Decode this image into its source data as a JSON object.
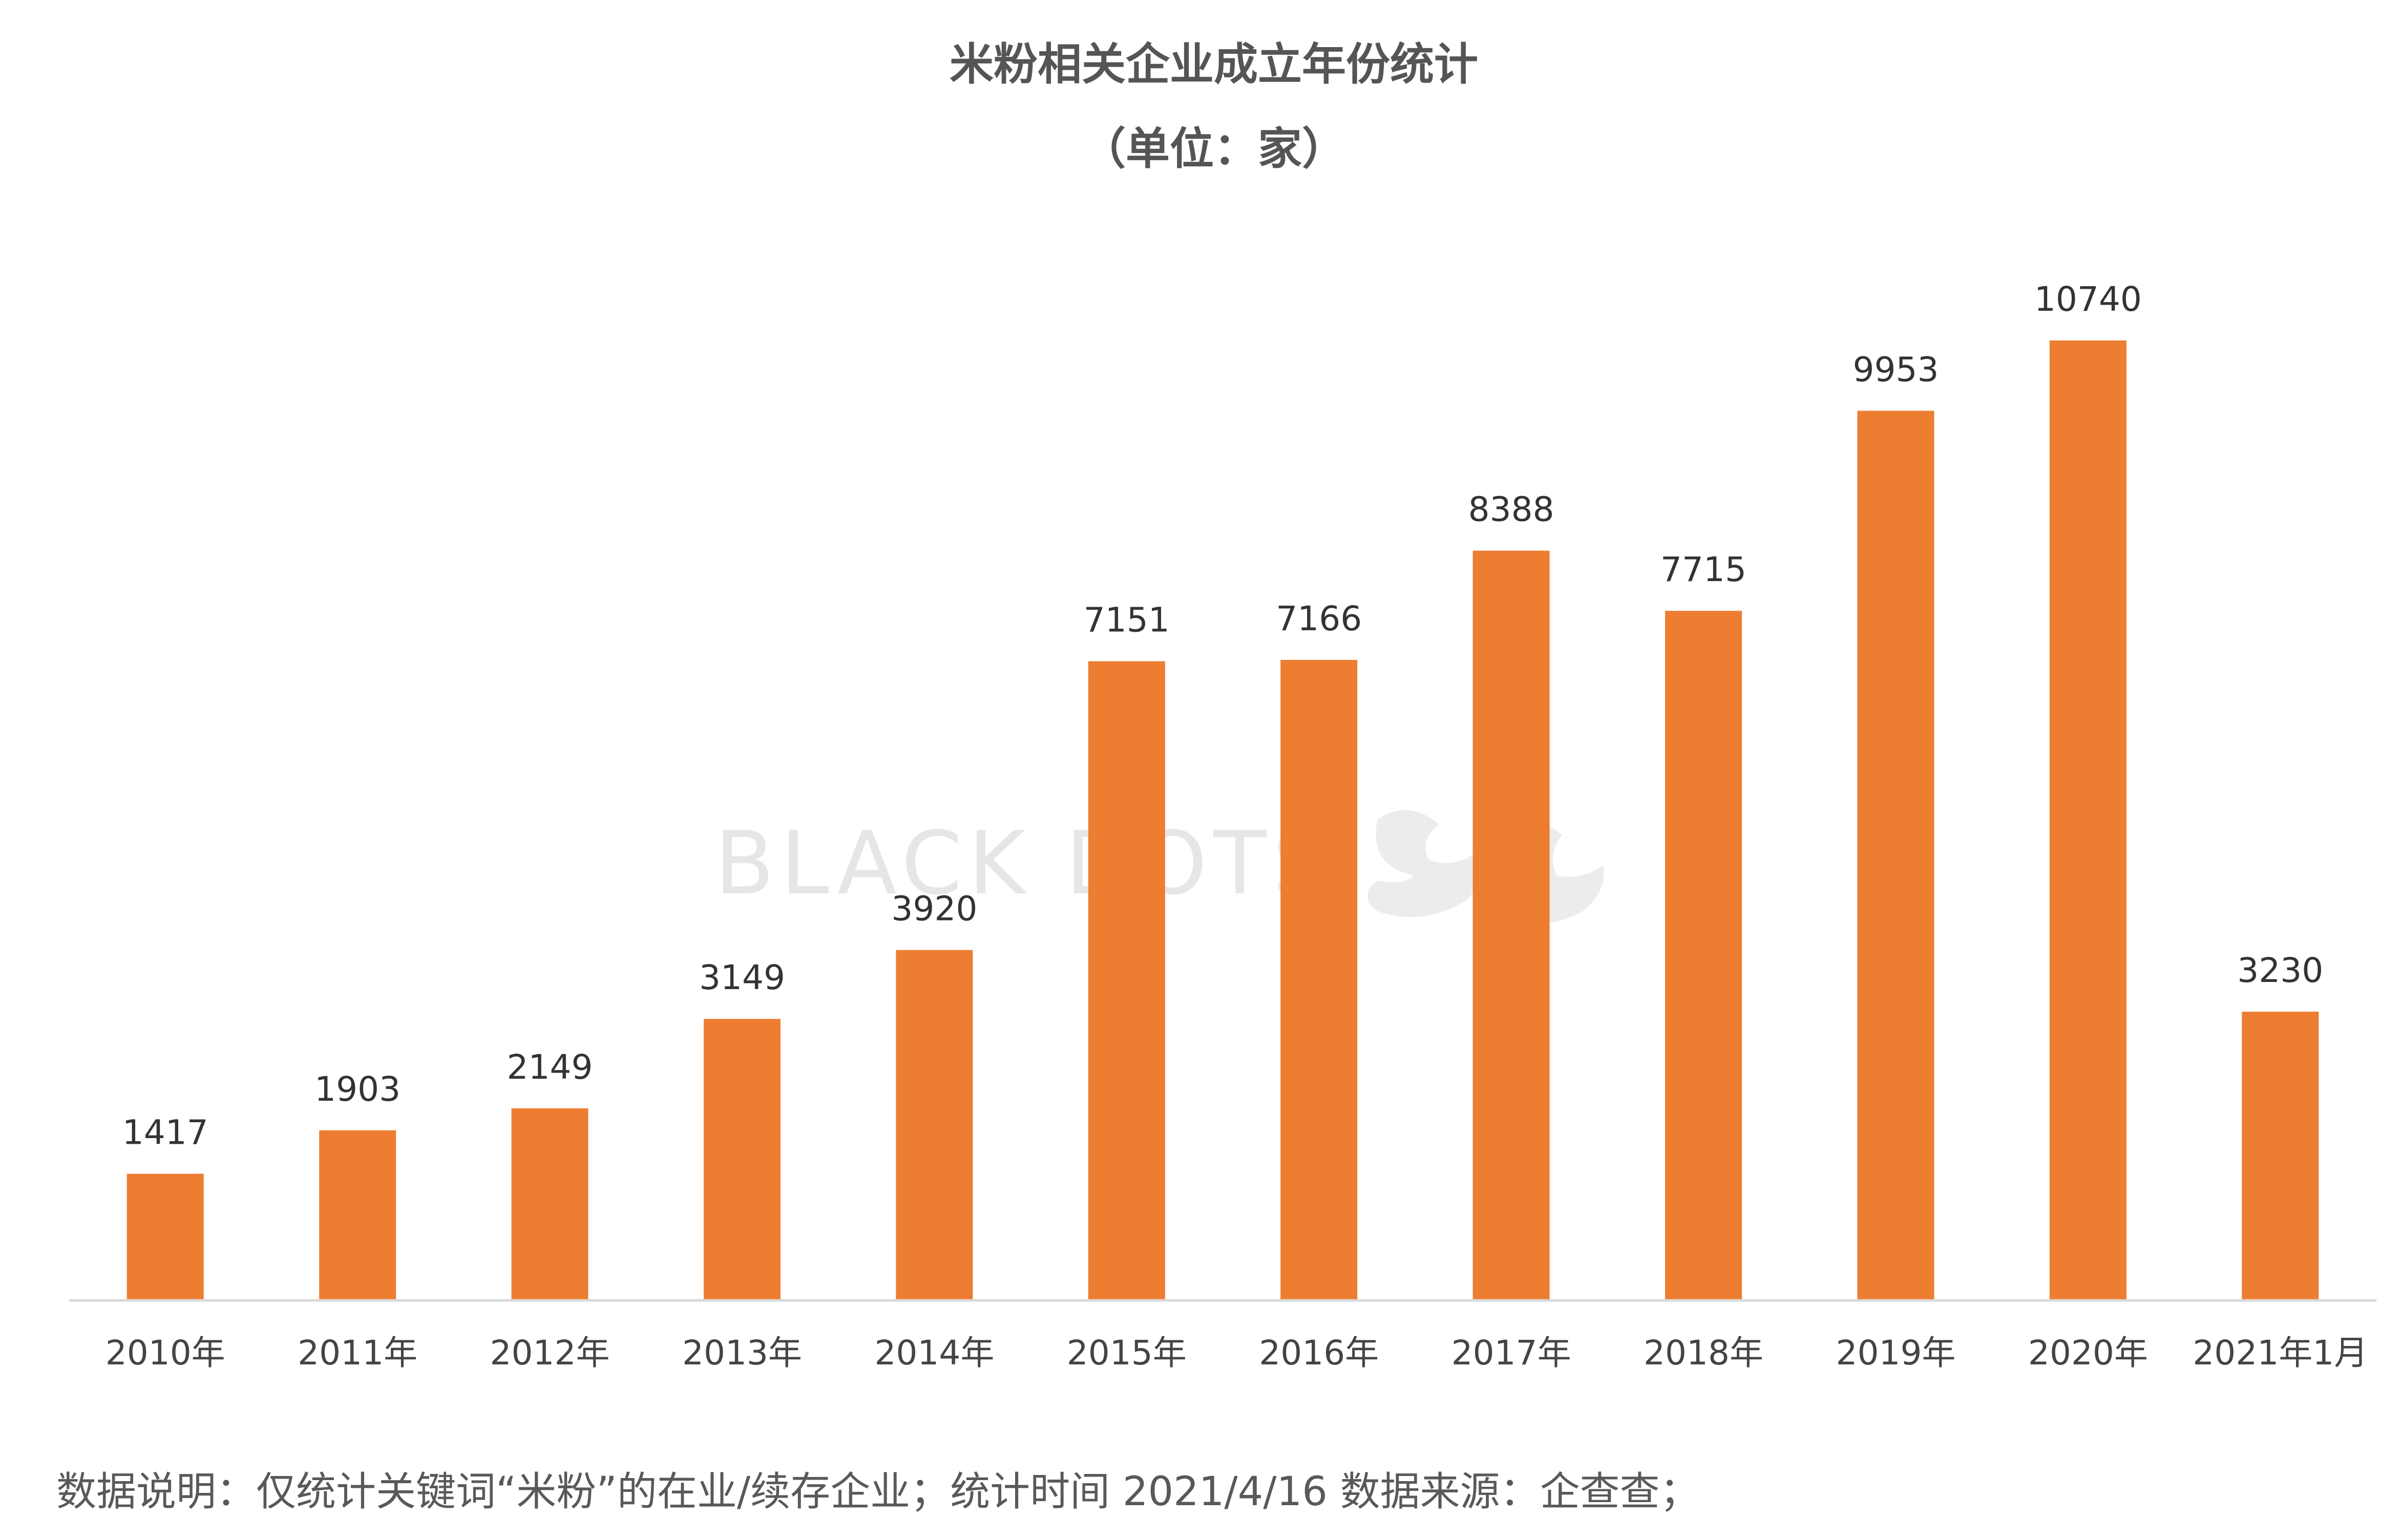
{
  "chart_data": {
    "type": "bar",
    "title": "米粉相关企业成立年份统计",
    "subtitle": "（单位：家）",
    "categories": [
      "2010年",
      "2011年",
      "2012年",
      "2013年",
      "2014年",
      "2015年",
      "2016年",
      "2017年",
      "2018年",
      "2019年",
      "2020年",
      "2021年1月"
    ],
    "values": [
      1417,
      1903,
      2149,
      3149,
      3920,
      7151,
      7166,
      8388,
      7715,
      9953,
      10740,
      3230
    ],
    "xlabel": "",
    "ylabel": "",
    "ylim": [
      0,
      11500
    ],
    "grid": false,
    "legend": "none",
    "bar_color": "#ED7D31"
  },
  "footnote": "数据说明：仅统计关键词“米粉”的在业/续存企业；统计时间  2021/4/16   数据来源：企查查；",
  "watermark": "BLACK DOTS",
  "colors": {
    "bar": "#ED7D31",
    "axis": "#D9D9D9",
    "title": "#555555",
    "label": "#333333",
    "footnote": "#595959"
  }
}
